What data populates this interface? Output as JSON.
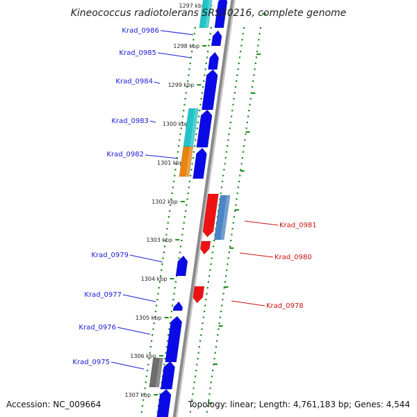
{
  "title": "Kineococcus radiotolerans SRS30216, complete genome",
  "accession": "Accession: NC_009664",
  "topology": "Topology: linear; Length: 4,761,183 bp; Genes: 4,544",
  "colors": {
    "forward_label": "#1a1ad6",
    "reverse_label": "#cc1111",
    "blue": "#0a0ae6",
    "red": "#ee1111",
    "cyan": "#22c4c8",
    "orange": "#e8850f",
    "steel": "#4b86c4",
    "gray": "#6e6e6e",
    "green_dots": "#1a8a1a"
  },
  "ticks": [
    {
      "label": "1297 kbp"
    },
    {
      "label": "1298 kbp"
    },
    {
      "label": "1299 kbp"
    },
    {
      "label": "1300 kbp"
    },
    {
      "label": "1301 kbp"
    },
    {
      "label": "1302 kbp"
    },
    {
      "label": "1303 kbp"
    },
    {
      "label": "1304 kbp"
    },
    {
      "label": "1305 kbp"
    },
    {
      "label": "1306 kbp"
    },
    {
      "label": "1307 kbp"
    }
  ],
  "genes_forward": [
    {
      "name": "Krad_0986"
    },
    {
      "name": "Krad_0985"
    },
    {
      "name": "Krad_0984"
    },
    {
      "name": "Krad_0983"
    },
    {
      "name": "Krad_0982"
    },
    {
      "name": "Krad_0979"
    },
    {
      "name": "Krad_0977"
    },
    {
      "name": "Krad_0976"
    },
    {
      "name": "Krad_0975"
    }
  ],
  "genes_reverse": [
    {
      "name": "Krad_0981"
    },
    {
      "name": "Krad_0980"
    },
    {
      "name": "Krad_0978"
    }
  ]
}
